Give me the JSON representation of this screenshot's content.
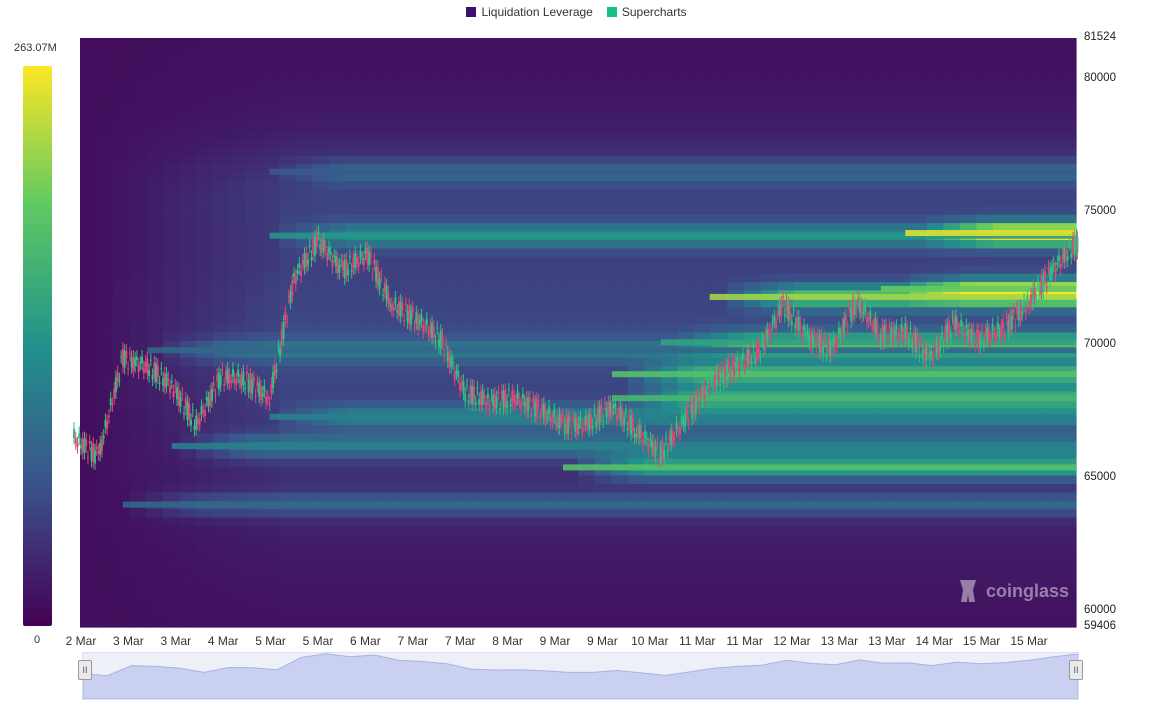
{
  "legend": {
    "items": [
      {
        "label": "Liquidation Leverage",
        "color": "#3b0f70"
      },
      {
        "label": "Supercharts",
        "color": "#14c08a"
      }
    ]
  },
  "colorbar": {
    "max_label": "263.07M",
    "min_label": "0"
  },
  "watermark": {
    "text": "coinglass",
    "icon": "coinglass-logo-icon"
  },
  "navigator": {
    "left_handle": "II",
    "right_handle": "II"
  },
  "chart_data": {
    "type": "heatmap",
    "title": "",
    "ylim": [
      59406,
      81524
    ],
    "y_ticks": [
      "81524",
      "80000",
      "75000",
      "70000",
      "65000",
      "60000",
      "59406"
    ],
    "x_ticks": [
      "2 Mar",
      "3 Mar",
      "3 Mar",
      "4 Mar",
      "5 Mar",
      "5 Mar",
      "6 Mar",
      "7 Mar",
      "7 Mar",
      "8 Mar",
      "9 Mar",
      "9 Mar",
      "10 Mar",
      "11 Mar",
      "11 Mar",
      "12 Mar",
      "13 Mar",
      "13 Mar",
      "14 Mar",
      "15 Mar",
      "15 Mar"
    ],
    "colorscale": [
      "#440154",
      "#3b528b",
      "#21918c",
      "#5ec962",
      "#fde725"
    ],
    "value_range": [
      0,
      263.07
    ],
    "value_unit": "M",
    "series": [
      {
        "name": "Supercharts",
        "x_index": [
          0,
          0.5,
          1,
          1.5,
          2,
          2.5,
          3,
          3.5,
          4,
          4.5,
          5,
          5.5,
          6,
          6.5,
          7,
          7.5,
          8,
          8.5,
          9,
          9.5,
          10,
          10.5,
          11,
          11.5,
          12,
          12.5,
          13,
          13.5,
          14,
          14.5,
          15,
          15.5,
          16,
          16.5,
          17,
          17.5,
          18,
          18.5,
          19,
          19.5,
          20,
          20.5
        ],
        "y": [
          66500,
          65800,
          69500,
          69200,
          68500,
          67000,
          68800,
          68700,
          68000,
          72500,
          73900,
          72800,
          73400,
          71500,
          71000,
          70200,
          68200,
          67900,
          68000,
          67600,
          67000,
          67000,
          67700,
          66800,
          65900,
          67200,
          68500,
          69200,
          69700,
          71500,
          70300,
          69800,
          71600,
          70400,
          70500,
          69500,
          70800,
          70200,
          70600,
          71500,
          72800,
          73800
        ]
      }
    ],
    "bands": [
      {
        "price": 74100,
        "start_index": 4,
        "intensity": 0.55
      },
      {
        "price": 74200,
        "start_index": 17,
        "intensity": 1.0
      },
      {
        "price": 71800,
        "start_index": 13,
        "intensity": 0.9
      },
      {
        "price": 72100,
        "start_index": 16.5,
        "intensity": 0.8
      },
      {
        "price": 68900,
        "start_index": 11,
        "intensity": 0.75
      },
      {
        "price": 68000,
        "start_index": 11,
        "intensity": 0.7
      },
      {
        "price": 65400,
        "start_index": 10,
        "intensity": 0.75
      },
      {
        "price": 70100,
        "start_index": 12,
        "intensity": 0.6
      },
      {
        "price": 66200,
        "start_index": 2,
        "intensity": 0.45
      },
      {
        "price": 67300,
        "start_index": 4,
        "intensity": 0.45
      },
      {
        "price": 69800,
        "start_index": 1.5,
        "intensity": 0.35
      },
      {
        "price": 76500,
        "start_index": 4,
        "intensity": 0.3
      },
      {
        "price": 64000,
        "start_index": 1,
        "intensity": 0.35
      }
    ]
  }
}
